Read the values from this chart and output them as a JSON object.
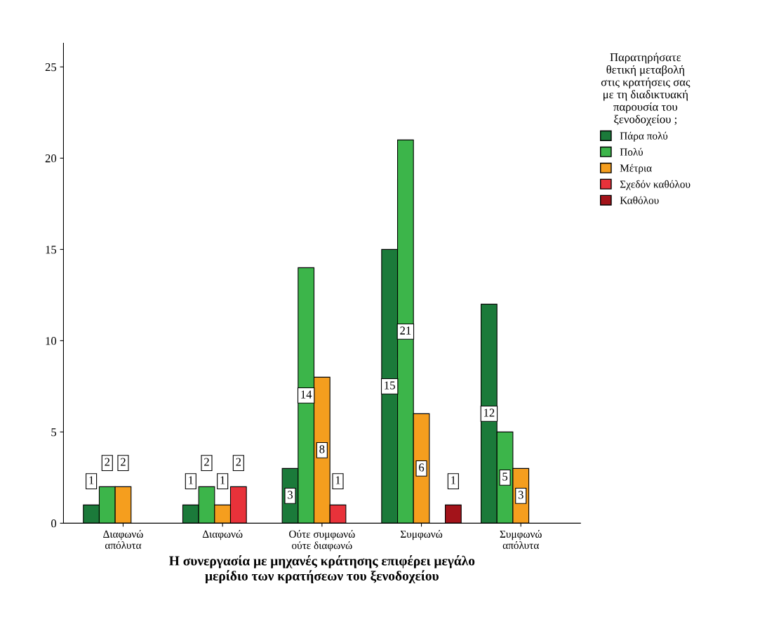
{
  "chart_data": {
    "type": "bar",
    "xlabel": "Η συνεργασία με μηχανές κράτησης επιφέρει μεγάλο μερίδιο των κρατήσεων του ξενοδοχείου",
    "legend_title": "Παρατηρήσατε θετική μεταβολή στις κρατήσεις σας με τη διαδικτυακή παρουσία του ξενοδοχείου ;",
    "categories": [
      "Διαφωνώ απόλυτα",
      "Διαφωνώ",
      "Ούτε συμφωνώ ούτε διαφωνώ",
      "Συμφωνώ",
      "Συμφωνώ απόλυτα"
    ],
    "series": [
      {
        "name": "Πάρα πολύ",
        "color": "#1b7a3a",
        "values": [
          1,
          1,
          3,
          15,
          12
        ]
      },
      {
        "name": "Πολύ",
        "color": "#3cb54a",
        "values": [
          2,
          2,
          14,
          21,
          5
        ]
      },
      {
        "name": "Μέτρια",
        "color": "#f59e1e",
        "values": [
          2,
          1,
          8,
          6,
          3
        ]
      },
      {
        "name": "Σχεδόν καθόλου",
        "color": "#e8323a",
        "values": [
          null,
          2,
          1,
          null,
          null
        ]
      },
      {
        "name": "Καθόλου",
        "color": "#a3131a",
        "values": [
          null,
          null,
          null,
          1,
          null
        ]
      }
    ],
    "ylim": [
      0,
      26.3
    ],
    "yticks": [
      0,
      5,
      10,
      15,
      20,
      25
    ],
    "data_labels": true,
    "grid": false,
    "legend": "top right"
  }
}
